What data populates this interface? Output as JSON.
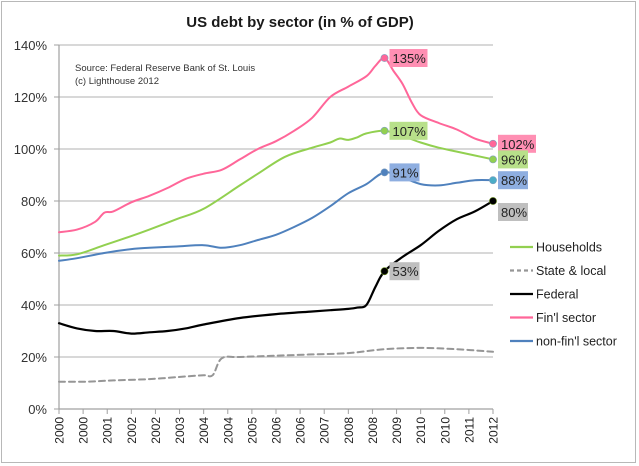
{
  "chart_data": {
    "type": "line",
    "title": "US debt by sector (in % of GDP)",
    "xlabel": "",
    "ylabel": "",
    "ylim": [
      0,
      140
    ],
    "yticks": [
      0,
      20,
      40,
      60,
      80,
      100,
      120,
      140
    ],
    "ytick_labels": [
      "0%",
      "20%",
      "40%",
      "60%",
      "80%",
      "100%",
      "120%",
      "140%"
    ],
    "x_unit": "quarters since 2000 Q1",
    "xlim": [
      0,
      48
    ],
    "xtick_labels": [
      "2000",
      "2000",
      "2001",
      "2002",
      "2002",
      "2003",
      "2004",
      "2004",
      "2005",
      "2006",
      "2006",
      "2007",
      "2008",
      "2008",
      "2009",
      "2010",
      "2010",
      "2011",
      "2012"
    ],
    "grid": "horizontal",
    "legend_position": "right",
    "annotation": {
      "source": "Source: Federal Reserve Bank of St. Louis",
      "copyright": "(c) Lighthouse 2012"
    },
    "series": [
      {
        "name": "Households",
        "color": "#92d050",
        "dash": "solid",
        "x": [
          0,
          2,
          5,
          8,
          10,
          13,
          16,
          20,
          22,
          25,
          28,
          30,
          31,
          32,
          33,
          34,
          36,
          38,
          40,
          42,
          44,
          46,
          48
        ],
        "values": [
          59,
          59.5,
          63,
          66.5,
          69,
          73,
          77,
          86,
          90.5,
          97,
          100.5,
          102.5,
          104,
          103.5,
          104.5,
          106,
          107,
          105,
          102.5,
          100.5,
          99,
          97.5,
          96
        ]
      },
      {
        "name": "State & local",
        "color": "#969696",
        "dash": "dashed",
        "x": [
          0,
          3,
          6,
          10,
          14,
          16,
          17,
          18,
          20,
          24,
          28,
          32,
          36,
          40,
          44,
          48
        ],
        "values": [
          10.5,
          10.5,
          11,
          11.5,
          12.5,
          13,
          13,
          19.5,
          20,
          20.5,
          21,
          21.5,
          23,
          23.5,
          23,
          22
        ]
      },
      {
        "name": "Federal",
        "color": "#000000",
        "dash": "solid",
        "x": [
          0,
          2,
          4,
          6,
          8,
          10,
          12,
          14,
          16,
          20,
          24,
          28,
          30,
          32,
          33,
          34,
          35,
          36,
          38,
          40,
          42,
          44,
          46,
          48
        ],
        "values": [
          33,
          31,
          30,
          30,
          29,
          29.5,
          30,
          31,
          32.5,
          35,
          36.5,
          37.5,
          38,
          38.5,
          39,
          40,
          47,
          53,
          58.5,
          63,
          68.5,
          73,
          76,
          80
        ]
      },
      {
        "name": "Fin'l sector",
        "color": "#ff6699",
        "dash": "solid",
        "x": [
          0,
          2,
          4,
          5,
          6,
          8,
          10,
          12,
          14,
          16,
          18,
          20,
          22,
          24,
          26,
          28,
          30,
          32,
          34,
          35,
          36,
          37,
          38,
          39,
          40,
          42,
          44,
          46,
          48
        ],
        "values": [
          68,
          69,
          72,
          75.5,
          76,
          79.5,
          82,
          85,
          88.5,
          90.5,
          92,
          96,
          100,
          103,
          107,
          112,
          120,
          124,
          128,
          132,
          135,
          130,
          125,
          118,
          113,
          110,
          107.5,
          104,
          102
        ]
      },
      {
        "name": "non-fin'l sector",
        "color": "#4f81bd",
        "dash": "solid",
        "x": [
          0,
          2,
          5,
          8,
          10,
          13,
          16,
          18,
          20,
          22,
          24,
          26,
          28,
          30,
          32,
          34,
          36,
          38,
          40,
          42,
          44,
          46,
          48
        ],
        "values": [
          57,
          58,
          60,
          61.5,
          62,
          62.5,
          63,
          62,
          63,
          65,
          67,
          70,
          73.5,
          78,
          83,
          86.5,
          91,
          89,
          86.5,
          86,
          87,
          88,
          88
        ]
      }
    ],
    "data_labels": [
      {
        "series": "Fin'l sector",
        "x": 36,
        "value": 135,
        "text": "135%",
        "bg": "#ff8fb3"
      },
      {
        "series": "Households",
        "x": 36,
        "value": 107,
        "text": "107%",
        "bg": "#b8e08a"
      },
      {
        "series": "non-fin'l sector",
        "x": 36,
        "value": 91,
        "text": "91%",
        "bg": "#8eaee0"
      },
      {
        "series": "Federal",
        "x": 36,
        "value": 53,
        "text": "53%",
        "bg": "#bfbfbf"
      },
      {
        "series": "Fin'l sector",
        "x": 48,
        "value": 102,
        "text": "102%",
        "bg": "#ff8fb3"
      },
      {
        "series": "Households",
        "x": 48,
        "value": 96,
        "text": "96%",
        "bg": "#b8e08a"
      },
      {
        "series": "non-fin'l sector",
        "x": 48,
        "value": 88,
        "text": "88%",
        "bg": "#8eaee0"
      },
      {
        "series": "Federal",
        "x": 48,
        "value": 80,
        "text": "80%",
        "bg": "#bfbfbf"
      }
    ]
  }
}
